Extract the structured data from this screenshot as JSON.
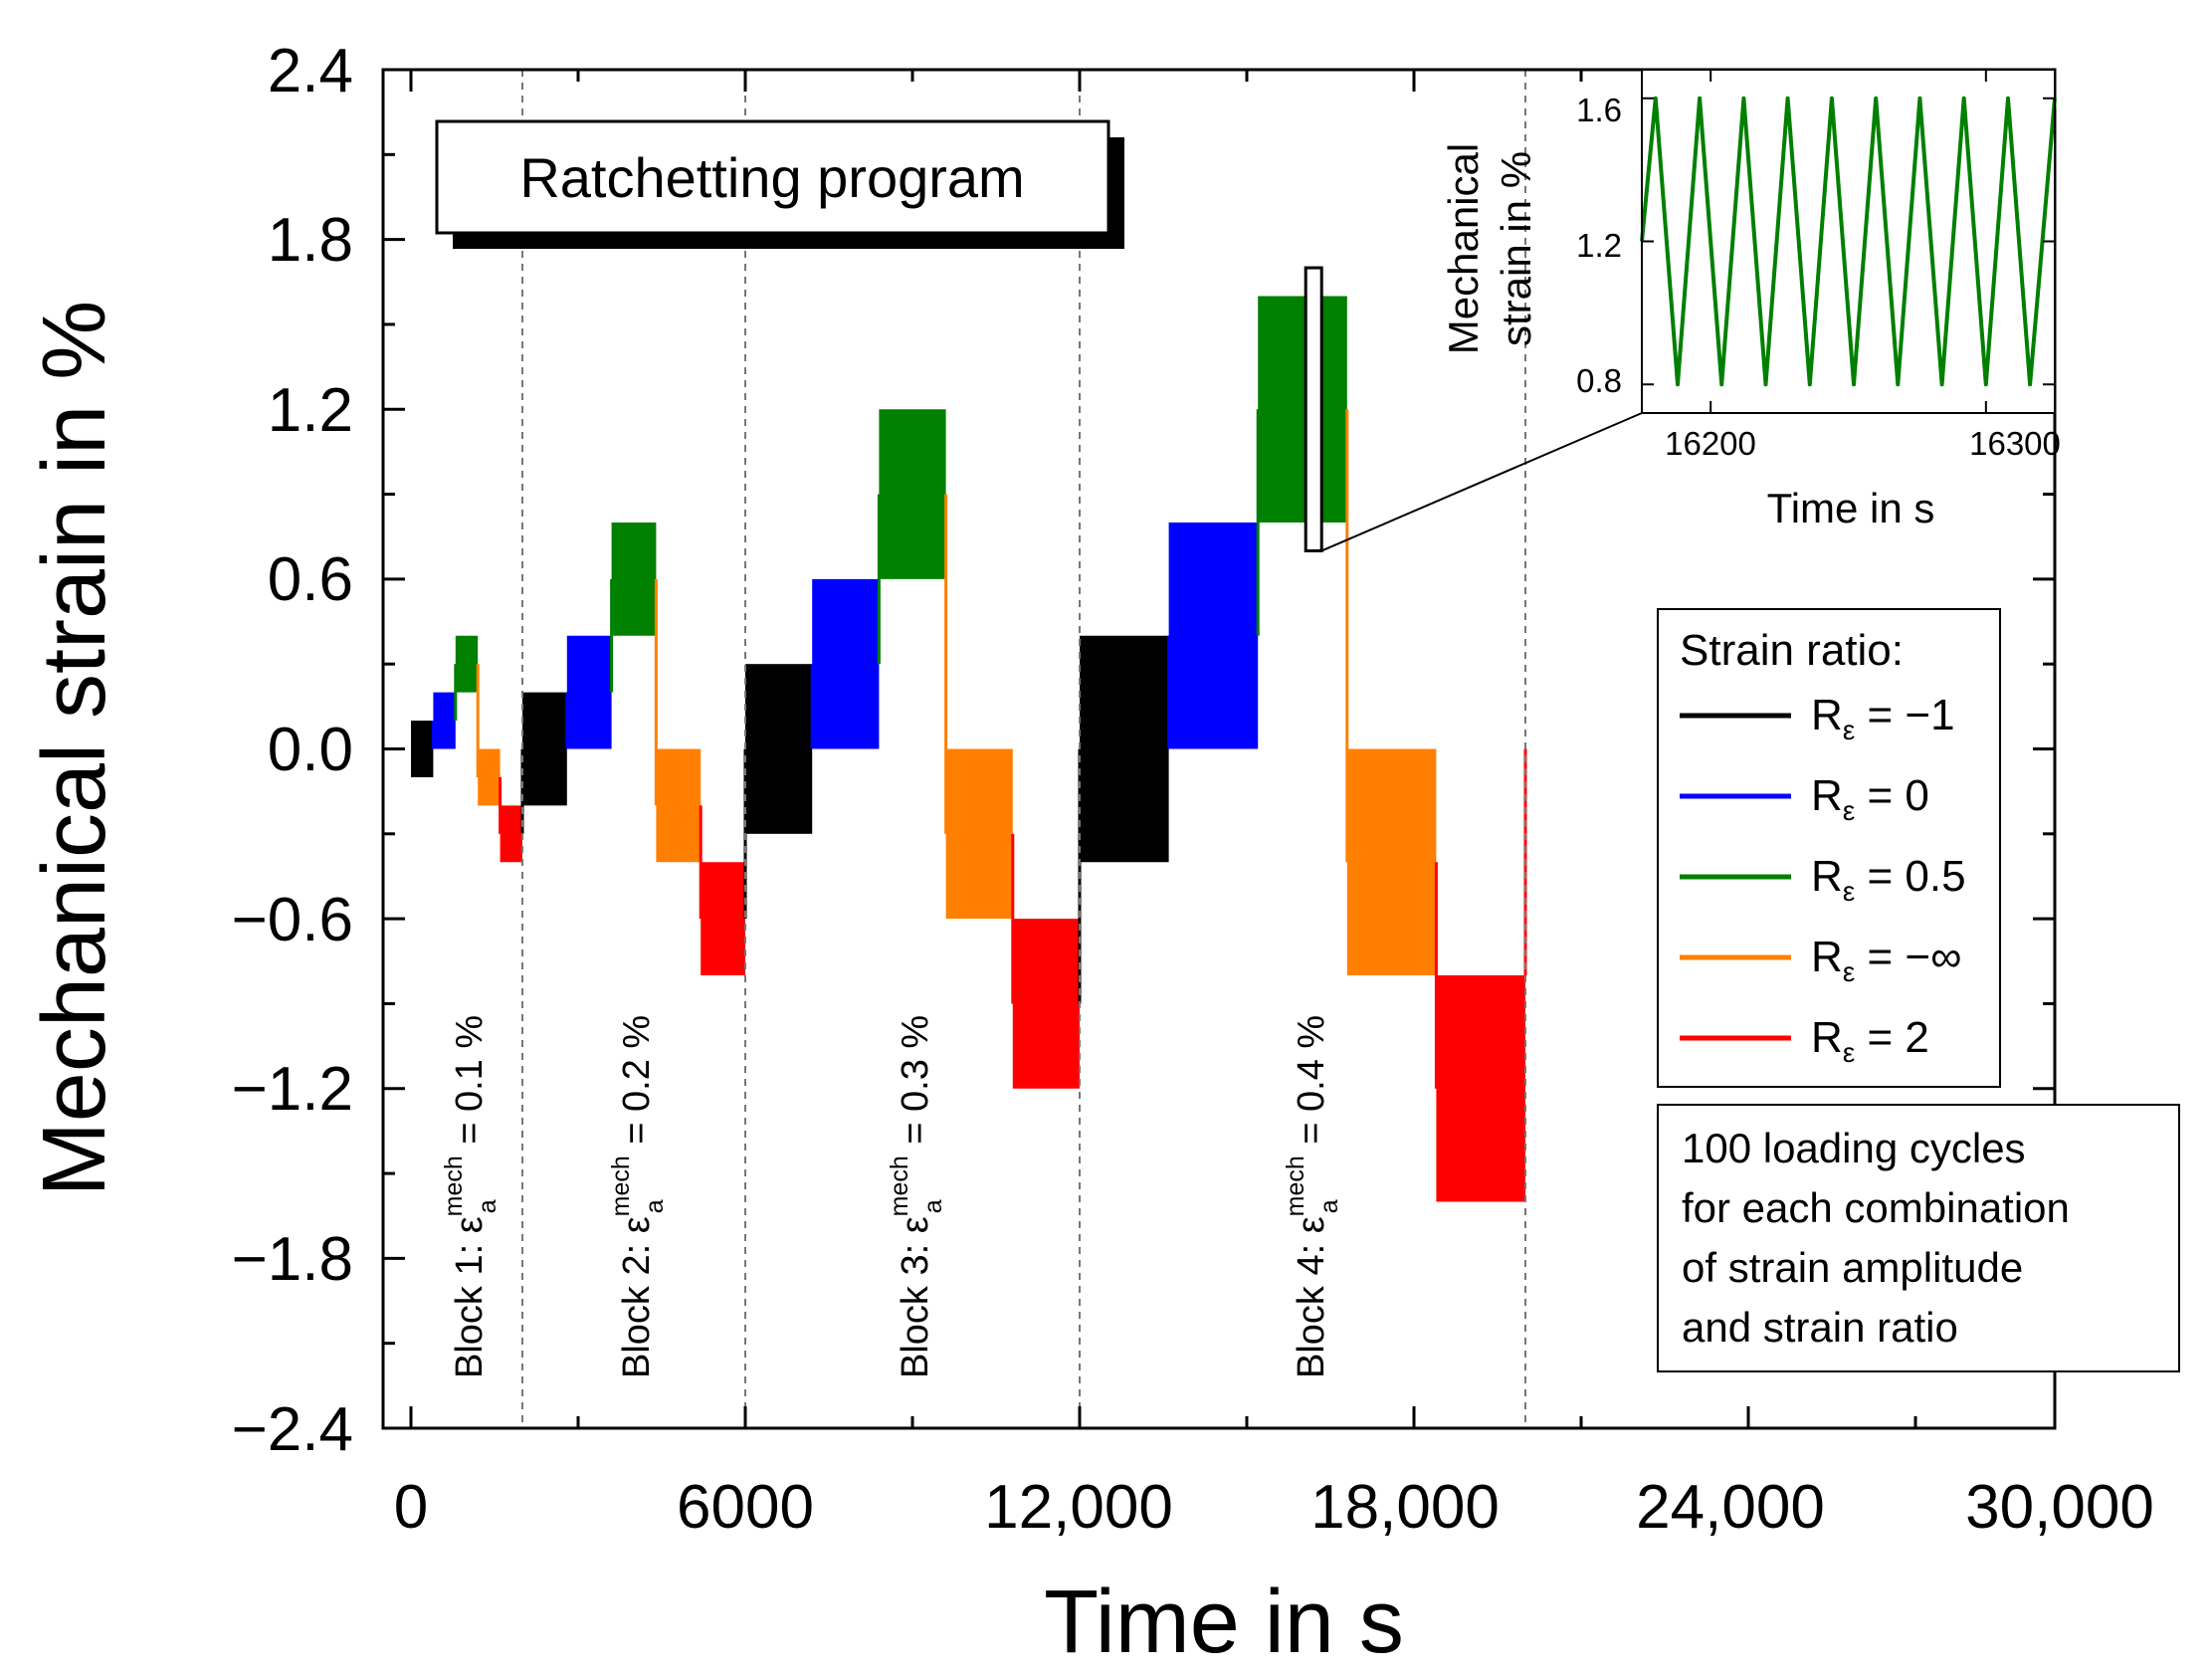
{
  "chart_data": [
    {
      "type": "area",
      "title": "Ratchetting program",
      "xlabel": "Time in s",
      "ylabel": "Mechanical strain in %",
      "xlim": [
        0,
        30000
      ],
      "ylim": [
        -2.4,
        2.4
      ],
      "x_ticks": [
        "0",
        "6000",
        "12,000",
        "18,000",
        "24,000",
        "30,000"
      ],
      "y_ticks": [
        "2.4",
        "1.8",
        "1.2",
        "0.6",
        "0.0",
        "−0.6",
        "−1.2",
        "−1.8",
        "−2.4"
      ],
      "grid": false,
      "block_boundaries": [
        2000,
        6000,
        12000,
        20000
      ],
      "blocks": [
        {
          "label_prefix": "Block 1: ε",
          "sub": "a",
          "sup": "mech",
          "label_suffix": " = 0.1 %",
          "amplitude": 0.1
        },
        {
          "label_prefix": "Block 2: ε",
          "sub": "a",
          "sup": "mech",
          "label_suffix": " = 0.2 %",
          "amplitude": 0.2
        },
        {
          "label_prefix": "Block 3: ε",
          "sub": "a",
          "sup": "mech",
          "label_suffix": " = 0.3 %",
          "amplitude": 0.3
        },
        {
          "label_prefix": "Block 4: ε",
          "sub": "a",
          "sup": "mech",
          "label_suffix": " = 0.4 %",
          "amplitude": 0.4
        }
      ],
      "legend": {
        "title": "Strain ratio:",
        "placement": "right",
        "entries": [
          {
            "prefix": "R",
            "sub": "ε",
            "text": " = −1",
            "color": "#000000"
          },
          {
            "prefix": "R",
            "sub": "ε",
            "text": " = 0",
            "color": "#0000ff"
          },
          {
            "prefix": "R",
            "sub": "ε",
            "text": " = 0.5",
            "color": "#008000"
          },
          {
            "prefix": "R",
            "sub": "ε",
            "text": " = −∞",
            "color": "#ff8000"
          },
          {
            "prefix": "R",
            "sub": "ε",
            "text": " = 2",
            "color": "#ff0000"
          }
        ]
      },
      "note": [
        "100 loading cycles",
        "for each combination",
        "of strain amplitude",
        "and strain ratio"
      ],
      "series": [
        {
          "color": "#000000",
          "segments": [
            {
              "x0": 0,
              "x1": 400,
              "ymin": -0.1,
              "ymax": 0.1
            },
            {
              "x0": 2000,
              "x1": 2800,
              "ymin": -0.2,
              "ymax": 0.2
            },
            {
              "x0": 6000,
              "x1": 7200,
              "ymin": -0.3,
              "ymax": 0.3
            },
            {
              "x0": 12000,
              "x1": 13600,
              "ymin": -0.4,
              "ymax": 0.4
            }
          ]
        },
        {
          "color": "#0000ff",
          "segments": [
            {
              "x0": 400,
              "x1": 800,
              "ymin": 0,
              "ymax": 0.2
            },
            {
              "x0": 2800,
              "x1": 3600,
              "ymin": 0,
              "ymax": 0.4
            },
            {
              "x0": 7200,
              "x1": 8400,
              "ymin": 0,
              "ymax": 0.6
            },
            {
              "x0": 13600,
              "x1": 15200,
              "ymin": 0,
              "ymax": 0.8
            }
          ]
        },
        {
          "color": "#008000",
          "segments": [
            {
              "x0": 800,
              "x1": 1200,
              "ymin": 0.2,
              "ymax": 0.4
            },
            {
              "x0": 3600,
              "x1": 4400,
              "ymin": 0.4,
              "ymax": 0.8
            },
            {
              "x0": 8400,
              "x1": 9600,
              "ymin": 0.6,
              "ymax": 1.2
            },
            {
              "x0": 15200,
              "x1": 16800,
              "ymin": 0.8,
              "ymax": 1.6
            }
          ]
        },
        {
          "color": "#ff8000",
          "segments": [
            {
              "x0": 1200,
              "x1": 1600,
              "ymin": -0.2,
              "ymax": 0
            },
            {
              "x0": 4400,
              "x1": 5200,
              "ymin": -0.4,
              "ymax": 0
            },
            {
              "x0": 9600,
              "x1": 10800,
              "ymin": -0.6,
              "ymax": 0
            },
            {
              "x0": 16800,
              "x1": 18400,
              "ymin": -0.8,
              "ymax": 0
            }
          ]
        },
        {
          "color": "#ff0000",
          "segments": [
            {
              "x0": 1600,
              "x1": 2000,
              "ymin": -0.4,
              "ymax": -0.2
            },
            {
              "x0": 5200,
              "x1": 6000,
              "ymin": -0.8,
              "ymax": -0.4
            },
            {
              "x0": 10800,
              "x1": 12000,
              "ymin": -1.2,
              "ymax": -0.6
            },
            {
              "x0": 18400,
              "x1": 20000,
              "ymin": -1.6,
              "ymax": -0.8
            }
          ]
        }
      ]
    },
    {
      "type": "line",
      "xlabel": "Time in s",
      "ylabel_lines": [
        "Mechanical",
        "strain in %"
      ],
      "xlim": [
        16175,
        16325
      ],
      "ylim": [
        0.72,
        1.68
      ],
      "x_ticks": [
        {
          "value": 16200,
          "label": "16200"
        },
        {
          "value": 16300,
          "label": "16300"
        }
      ],
      "y_ticks": [
        {
          "value": 0.8,
          "label": "0.8"
        },
        {
          "value": 1.2,
          "label": "1.2"
        },
        {
          "value": 1.6,
          "label": "1.6"
        }
      ],
      "zoom_window": {
        "x0": 16175,
        "x1": 16325,
        "ymin": 0.72,
        "ymax": 1.68
      },
      "series": [
        {
          "color": "#008000",
          "points": [
            [
              16175,
              1.2
            ],
            [
              16180,
              1.6
            ],
            [
              16188,
              0.8
            ],
            [
              16196,
              1.6
            ],
            [
              16204,
              0.8
            ],
            [
              16212,
              1.6
            ],
            [
              16220,
              0.8
            ],
            [
              16228,
              1.6
            ],
            [
              16236,
              0.8
            ],
            [
              16244,
              1.6
            ],
            [
              16252,
              0.8
            ],
            [
              16260,
              1.6
            ],
            [
              16268,
              0.8
            ],
            [
              16276,
              1.6
            ],
            [
              16284,
              0.8
            ],
            [
              16292,
              1.6
            ],
            [
              16300,
              0.8
            ],
            [
              16308,
              1.6
            ],
            [
              16316,
              0.8
            ],
            [
              16325,
              1.6
            ]
          ]
        }
      ]
    }
  ]
}
